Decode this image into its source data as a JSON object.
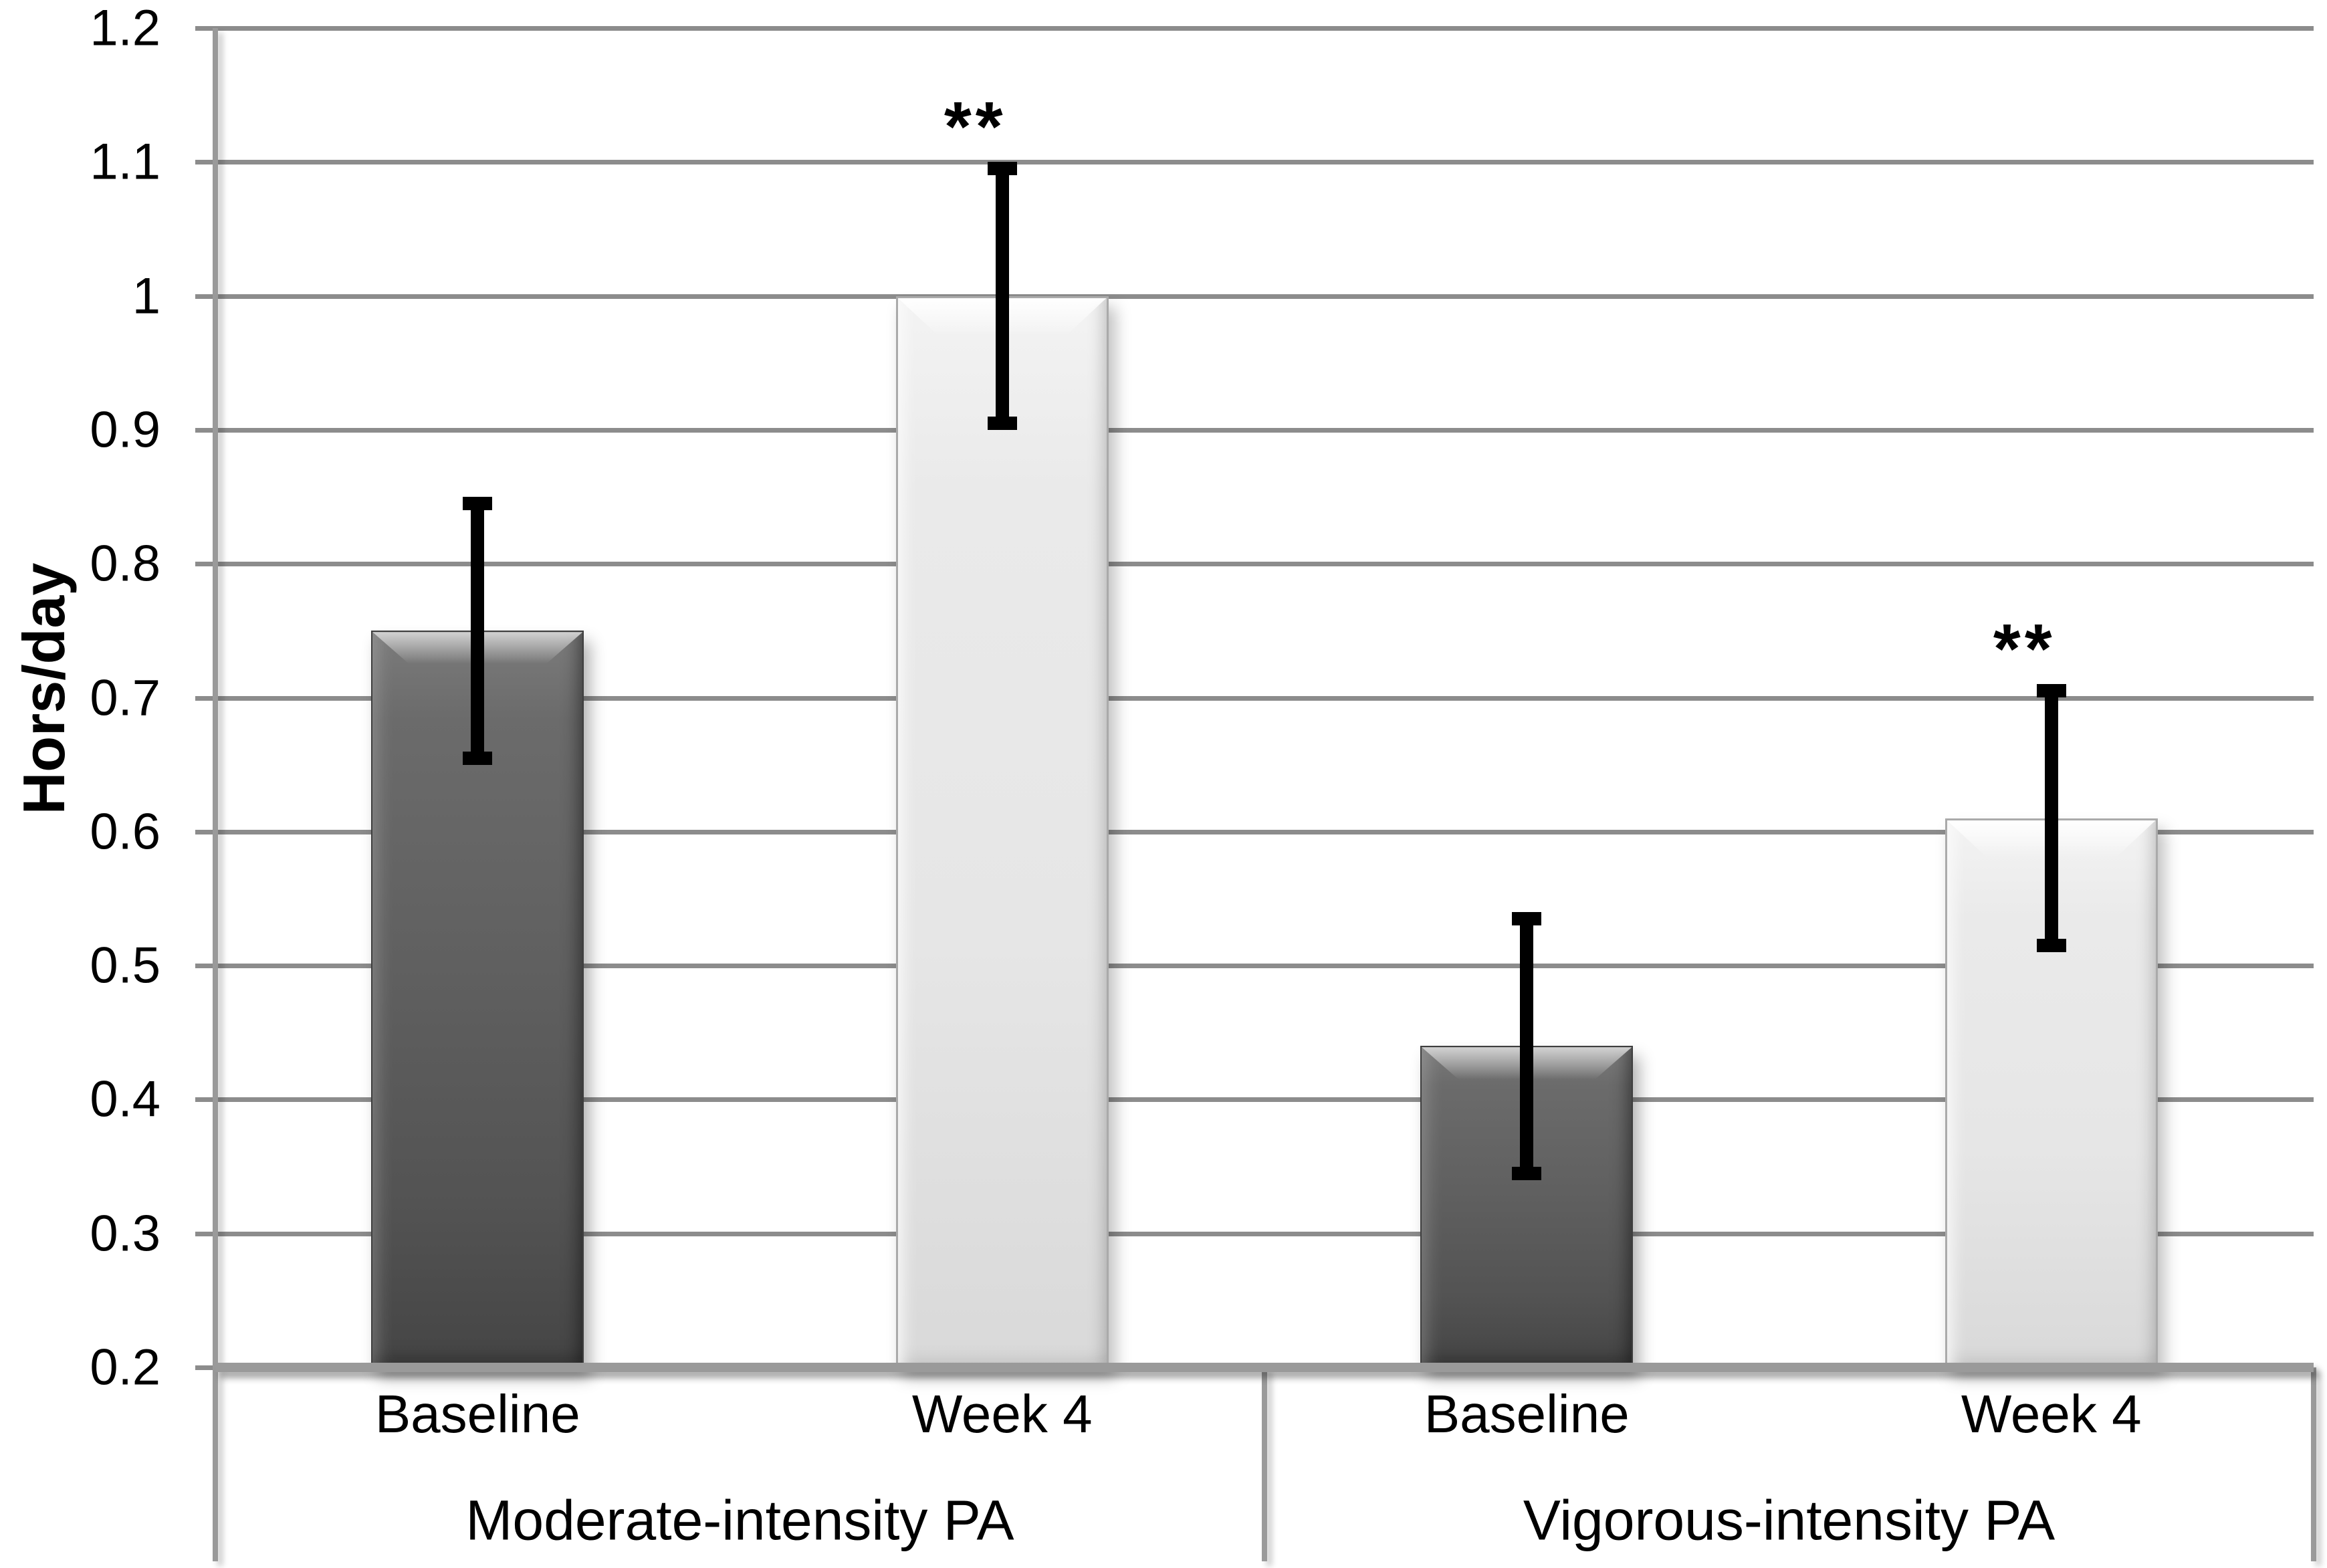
{
  "chart_data": {
    "type": "bar",
    "title": "",
    "xlabel": "",
    "ylabel": "Hors/day",
    "ylim": [
      0.2,
      1.2
    ],
    "ytick_step": 0.1,
    "ytick_labels_top_to_bottom": [
      "1.2",
      "1.1",
      "1",
      "0.9",
      "0.8",
      "0.7",
      "0.6",
      "0.5",
      "0.4",
      "0.3",
      "0.2"
    ],
    "grid": "horizontal",
    "legend": "none",
    "bar_baseline_value": 0.2,
    "groups": [
      {
        "label": "Moderate-intensity PA",
        "bars": [
          {
            "label": "Baseline",
            "value": 0.75,
            "error": 0.1,
            "annotation": "",
            "shade": "dark"
          },
          {
            "label": "Week 4",
            "value": 1.0,
            "error": 0.1,
            "annotation": "**",
            "shade": "light"
          }
        ]
      },
      {
        "label": "Vigorous-intensity PA",
        "bars": [
          {
            "label": "Baseline",
            "value": 0.44,
            "error": 0.1,
            "annotation": "",
            "shade": "dark"
          },
          {
            "label": "Week 4",
            "value": 0.61,
            "error": 0.1,
            "annotation": "**",
            "shade": "light"
          }
        ]
      }
    ],
    "colors": {
      "dark_bar": "#565656",
      "light_bar": "#e8e8e8",
      "gridline": "#8c8c8c",
      "axis_line": "#9a9a9a",
      "error_bar": "#000000",
      "text": "#000000",
      "background": "#ffffff"
    }
  }
}
